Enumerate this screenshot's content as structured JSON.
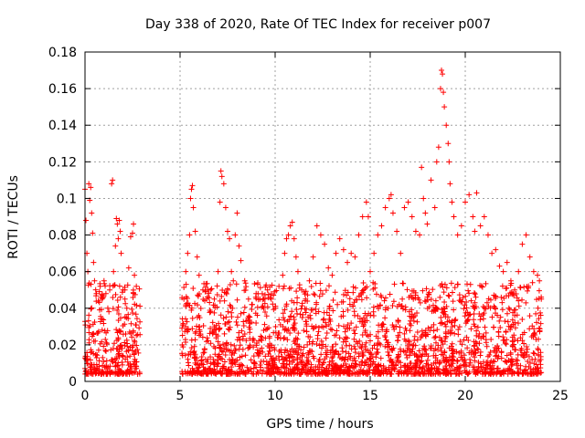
{
  "chart_data": {
    "type": "scatter",
    "title": "Day 338 of 2020, Rate Of TEC Index for receiver p007",
    "xlabel": "GPS time / hours",
    "ylabel": "ROTI / TECUs",
    "xlim": [
      0,
      25
    ],
    "ylim": [
      0,
      0.18
    ],
    "xticks": [
      0,
      5,
      10,
      15,
      20,
      25
    ],
    "yticks": [
      0,
      0.02,
      0.04,
      0.06,
      0.08,
      0.1,
      0.12,
      0.14,
      0.16,
      0.18
    ],
    "xtick_labels": [
      "0",
      "5",
      "10",
      "15",
      "20",
      "25"
    ],
    "ytick_labels": [
      "0",
      "0.02",
      "0.04",
      "0.06",
      "0.08",
      "0.1",
      "0.12",
      "0.14",
      "0.16",
      "0.18"
    ],
    "grid": true,
    "marker": "+",
    "color": "#ff0000",
    "series": [
      {
        "name": "p007",
        "points": [
          [
            0.0,
            0.105
          ],
          [
            0.05,
            0.088
          ],
          [
            0.1,
            0.07
          ],
          [
            0.15,
            0.06
          ],
          [
            0.2,
            0.108
          ],
          [
            0.25,
            0.099
          ],
          [
            0.3,
            0.106
          ],
          [
            0.35,
            0.092
          ],
          [
            0.4,
            0.081
          ],
          [
            0.45,
            0.065
          ],
          [
            0.5,
            0.055
          ],
          [
            0.6,
            0.048
          ],
          [
            0.7,
            0.044
          ],
          [
            0.8,
            0.052
          ],
          [
            0.9,
            0.045
          ],
          [
            1.0,
            0.055
          ],
          [
            1.1,
            0.048
          ],
          [
            1.2,
            0.04
          ],
          [
            1.3,
            0.05
          ],
          [
            1.4,
            0.108
          ],
          [
            1.45,
            0.11
          ],
          [
            1.5,
            0.06
          ],
          [
            1.6,
            0.074
          ],
          [
            1.65,
            0.089
          ],
          [
            1.7,
            0.086
          ],
          [
            1.75,
            0.078
          ],
          [
            1.8,
            0.088
          ],
          [
            1.85,
            0.082
          ],
          [
            1.9,
            0.07
          ],
          [
            2.0,
            0.05
          ],
          [
            2.1,
            0.045
          ],
          [
            2.2,
            0.04
          ],
          [
            2.3,
            0.062
          ],
          [
            2.4,
            0.079
          ],
          [
            2.5,
            0.081
          ],
          [
            2.55,
            0.086
          ],
          [
            2.6,
            0.058
          ],
          [
            2.7,
            0.052
          ],
          [
            5.2,
            0.045
          ],
          [
            5.3,
            0.06
          ],
          [
            5.4,
            0.07
          ],
          [
            5.5,
            0.08
          ],
          [
            5.55,
            0.1
          ],
          [
            5.6,
            0.105
          ],
          [
            5.65,
            0.107
          ],
          [
            5.7,
            0.095
          ],
          [
            5.8,
            0.082
          ],
          [
            5.9,
            0.068
          ],
          [
            6.0,
            0.058
          ],
          [
            6.2,
            0.05
          ],
          [
            6.4,
            0.045
          ],
          [
            6.6,
            0.05
          ],
          [
            6.8,
            0.045
          ],
          [
            7.0,
            0.06
          ],
          [
            7.1,
            0.098
          ],
          [
            7.15,
            0.115
          ],
          [
            7.2,
            0.112
          ],
          [
            7.3,
            0.108
          ],
          [
            7.4,
            0.095
          ],
          [
            7.5,
            0.082
          ],
          [
            7.6,
            0.078
          ],
          [
            7.7,
            0.06
          ],
          [
            7.8,
            0.055
          ],
          [
            7.9,
            0.08
          ],
          [
            8.0,
            0.092
          ],
          [
            8.1,
            0.074
          ],
          [
            8.2,
            0.066
          ],
          [
            8.4,
            0.055
          ],
          [
            8.6,
            0.045
          ],
          [
            8.8,
            0.042
          ],
          [
            9.0,
            0.048
          ],
          [
            9.2,
            0.045
          ],
          [
            9.4,
            0.04
          ],
          [
            9.6,
            0.05
          ],
          [
            9.8,
            0.045
          ],
          [
            10.0,
            0.04
          ],
          [
            10.2,
            0.052
          ],
          [
            10.4,
            0.058
          ],
          [
            10.5,
            0.07
          ],
          [
            10.6,
            0.078
          ],
          [
            10.7,
            0.08
          ],
          [
            10.8,
            0.085
          ],
          [
            10.9,
            0.087
          ],
          [
            11.0,
            0.078
          ],
          [
            11.1,
            0.068
          ],
          [
            11.2,
            0.06
          ],
          [
            11.4,
            0.05
          ],
          [
            11.6,
            0.045
          ],
          [
            11.8,
            0.055
          ],
          [
            12.0,
            0.068
          ],
          [
            12.2,
            0.085
          ],
          [
            12.4,
            0.08
          ],
          [
            12.6,
            0.075
          ],
          [
            12.8,
            0.062
          ],
          [
            13.0,
            0.058
          ],
          [
            13.2,
            0.07
          ],
          [
            13.4,
            0.078
          ],
          [
            13.6,
            0.072
          ],
          [
            13.8,
            0.065
          ],
          [
            14.0,
            0.07
          ],
          [
            14.2,
            0.068
          ],
          [
            14.4,
            0.08
          ],
          [
            14.6,
            0.09
          ],
          [
            14.8,
            0.098
          ],
          [
            14.9,
            0.09
          ],
          [
            15.0,
            0.06
          ],
          [
            15.2,
            0.07
          ],
          [
            15.4,
            0.08
          ],
          [
            15.6,
            0.085
          ],
          [
            15.8,
            0.095
          ],
          [
            16.0,
            0.1
          ],
          [
            16.1,
            0.102
          ],
          [
            16.2,
            0.092
          ],
          [
            16.4,
            0.082
          ],
          [
            16.6,
            0.07
          ],
          [
            16.8,
            0.095
          ],
          [
            17.0,
            0.098
          ],
          [
            17.2,
            0.09
          ],
          [
            17.4,
            0.082
          ],
          [
            17.6,
            0.08
          ],
          [
            17.7,
            0.117
          ],
          [
            17.8,
            0.1
          ],
          [
            17.9,
            0.092
          ],
          [
            18.0,
            0.086
          ],
          [
            18.2,
            0.11
          ],
          [
            18.4,
            0.095
          ],
          [
            18.5,
            0.12
          ],
          [
            18.6,
            0.128
          ],
          [
            18.7,
            0.16
          ],
          [
            18.75,
            0.17
          ],
          [
            18.8,
            0.168
          ],
          [
            18.85,
            0.158
          ],
          [
            18.9,
            0.15
          ],
          [
            19.0,
            0.14
          ],
          [
            19.1,
            0.13
          ],
          [
            19.15,
            0.12
          ],
          [
            19.2,
            0.108
          ],
          [
            19.3,
            0.098
          ],
          [
            19.4,
            0.09
          ],
          [
            19.6,
            0.08
          ],
          [
            19.8,
            0.085
          ],
          [
            20.0,
            0.098
          ],
          [
            20.2,
            0.102
          ],
          [
            20.4,
            0.09
          ],
          [
            20.5,
            0.082
          ],
          [
            20.6,
            0.103
          ],
          [
            20.8,
            0.085
          ],
          [
            21.0,
            0.09
          ],
          [
            21.2,
            0.08
          ],
          [
            21.4,
            0.07
          ],
          [
            21.6,
            0.072
          ],
          [
            21.8,
            0.063
          ],
          [
            22.0,
            0.06
          ],
          [
            22.2,
            0.065
          ],
          [
            22.4,
            0.055
          ],
          [
            22.6,
            0.05
          ],
          [
            22.8,
            0.06
          ],
          [
            23.0,
            0.075
          ],
          [
            23.2,
            0.08
          ],
          [
            23.4,
            0.068
          ],
          [
            23.6,
            0.06
          ],
          [
            23.8,
            0.058
          ],
          [
            23.9,
            0.055
          ],
          [
            24.0,
            0.045
          ]
        ]
      }
    ]
  }
}
